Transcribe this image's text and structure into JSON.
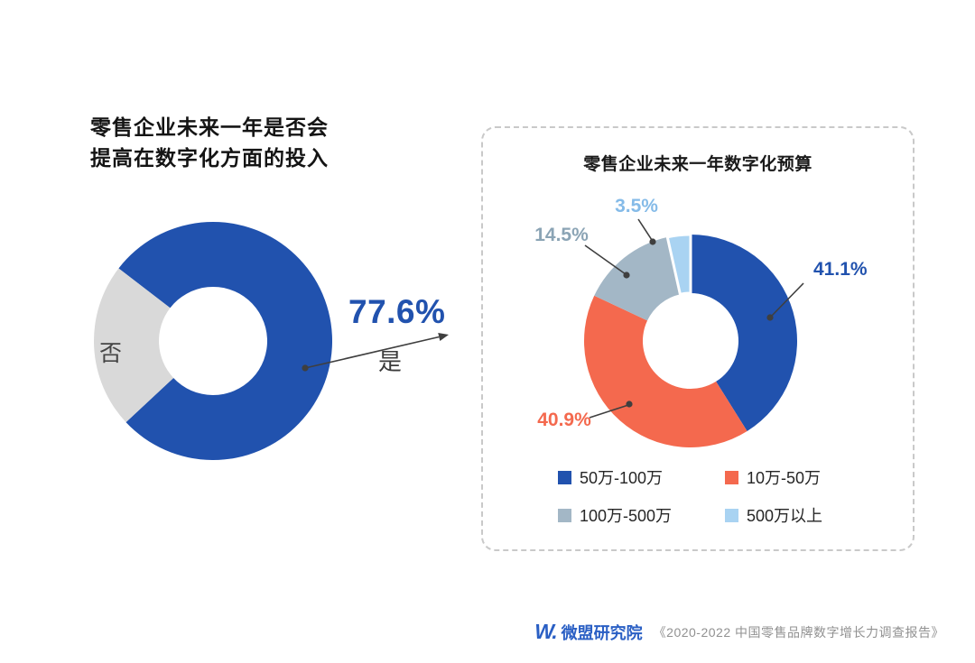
{
  "page": {
    "background": "#ffffff"
  },
  "chart_data": [
    {
      "type": "donut",
      "title": "零售企业未来一年是否会提高在数字化方面的投入",
      "title_lines": [
        "零售企业未来一年是否会",
        "提高在数字化方面的投入"
      ],
      "slices": [
        {
          "label": "是",
          "value": 77.6,
          "pct_text": "77.6%",
          "color": "#2152ae"
        },
        {
          "label": "否",
          "value": 22.4,
          "color": "#d9d9d9"
        }
      ],
      "start_angle_deg": -52.4,
      "inner_slice_label": "否",
      "callout": {
        "value_text": "77.6%",
        "label_text": "是",
        "value_color": "#2152ae"
      },
      "legend_position": "none"
    },
    {
      "type": "donut",
      "title": "零售企业未来一年数字化预算",
      "slices": [
        {
          "label": "50万-100万",
          "value": 41.1,
          "pct_text": "41.1%",
          "color": "#2152ae",
          "label_color": "#2152ae"
        },
        {
          "label": "10万-50万",
          "value": 40.9,
          "pct_text": "40.9%",
          "color": "#f4694e",
          "label_color": "#f4694e"
        },
        {
          "label": "100万-500万",
          "value": 14.5,
          "pct_text": "14.5%",
          "color": "#a3b7c6",
          "label_color": "#8ba4b5"
        },
        {
          "label": "500万以上",
          "value": 3.5,
          "pct_text": "3.5%",
          "color": "#a9d3f2",
          "label_color": "#85bbe8",
          "separated": true
        }
      ],
      "start_angle_deg": 0,
      "legend_position": "bottom",
      "legend_rows": 2
    }
  ],
  "footer": {
    "logo_mark": "W.",
    "logo_text": "微盟研究院",
    "source_text": "《2020-2022 中国零售品牌数字增长力调查报告》"
  }
}
